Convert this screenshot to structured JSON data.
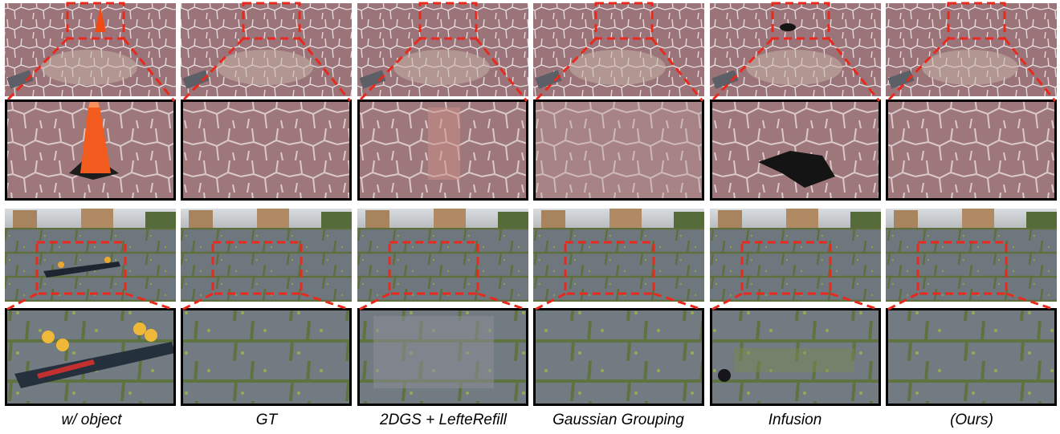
{
  "figure": {
    "methods": [
      "w/ object",
      "GT",
      "2DGS + LefteRefill",
      "Gaussian Grouping",
      "Infusion",
      "(Ours)"
    ],
    "rows": [
      {
        "scene": "red paver walkway",
        "object": "orange traffic cone"
      },
      {
        "scene": "grey stone pavement with grass",
        "object": "skateboard"
      }
    ],
    "colors": {
      "highlight": "#e8291c",
      "crop_border": "#000000",
      "paver_a": "#8f6a6e",
      "paver_b": "#b89294",
      "pavement_a": "#6b7278",
      "pavement_b": "#8a9096",
      "grass": "#7c8a3a"
    }
  }
}
